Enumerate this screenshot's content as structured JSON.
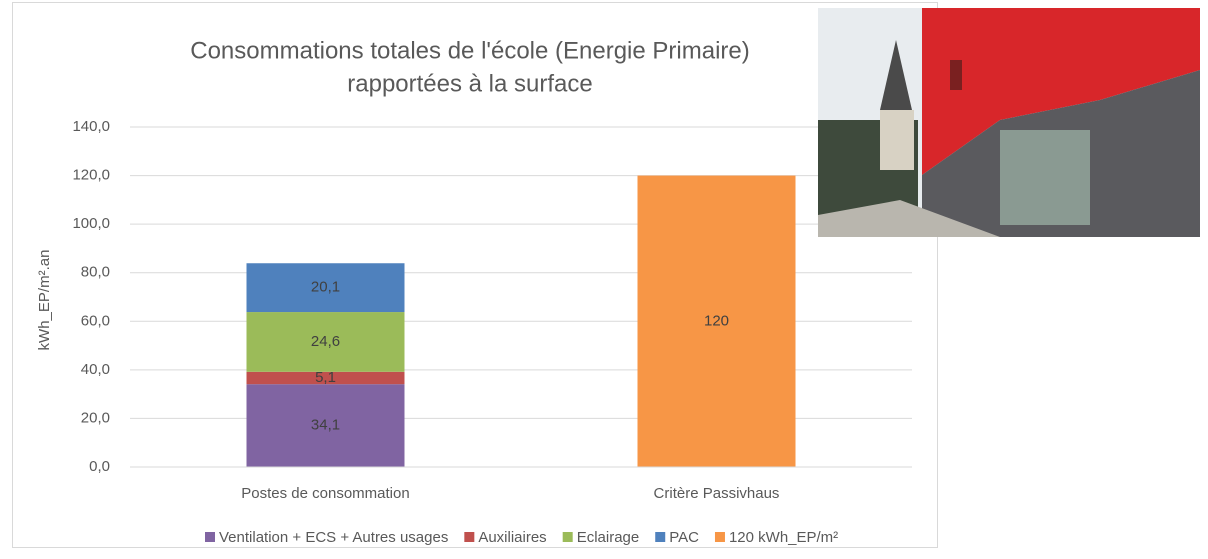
{
  "chart_data": {
    "type": "stacked-bar",
    "title": [
      "Consommations totales de l'école (Energie Primaire)",
      "rapportées à la surface"
    ],
    "y_label": "kWh_EP/m².an",
    "categories": [
      "Postes de consommation",
      "Critère Passivhaus"
    ],
    "series": [
      {
        "name": "Ventilation + ECS + Autres usages",
        "color": "#8064a2",
        "values": [
          34.1,
          null
        ],
        "value_labels": [
          "34,1",
          null
        ]
      },
      {
        "name": "Auxiliaires",
        "color": "#c0504d",
        "values": [
          5.1,
          null
        ],
        "value_labels": [
          "5,1",
          null
        ]
      },
      {
        "name": "Eclairage",
        "color": "#9bbb59",
        "values": [
          24.6,
          null
        ],
        "value_labels": [
          "24,6",
          null
        ]
      },
      {
        "name": "PAC",
        "color": "#4f81bd",
        "values": [
          20.1,
          null
        ],
        "value_labels": [
          "20,1",
          null
        ]
      },
      {
        "name": "120 kWh_EP/m²",
        "color": "#f79646",
        "values": [
          null,
          120
        ],
        "value_labels": [
          null,
          "120"
        ]
      }
    ],
    "ylim": [
      0,
      140
    ],
    "yticks": [
      {
        "value": 0,
        "label": "0,0"
      },
      {
        "value": 20,
        "label": "20,0"
      },
      {
        "value": 40,
        "label": "40,0"
      },
      {
        "value": 60,
        "label": "60,0"
      },
      {
        "value": 80,
        "label": "80,0"
      },
      {
        "value": 100,
        "label": "100,0"
      },
      {
        "value": 120,
        "label": "120,0"
      },
      {
        "value": 140,
        "label": "140,0"
      }
    ],
    "grid": true,
    "legend": "bottom"
  }
}
